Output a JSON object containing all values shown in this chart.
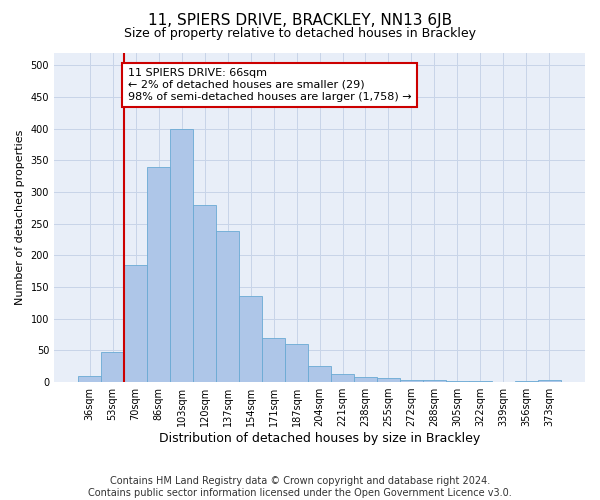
{
  "title": "11, SPIERS DRIVE, BRACKLEY, NN13 6JB",
  "subtitle": "Size of property relative to detached houses in Brackley",
  "xlabel": "Distribution of detached houses by size in Brackley",
  "ylabel": "Number of detached properties",
  "categories": [
    "36sqm",
    "53sqm",
    "70sqm",
    "86sqm",
    "103sqm",
    "120sqm",
    "137sqm",
    "154sqm",
    "171sqm",
    "187sqm",
    "204sqm",
    "221sqm",
    "238sqm",
    "255sqm",
    "272sqm",
    "288sqm",
    "305sqm",
    "322sqm",
    "339sqm",
    "356sqm",
    "373sqm"
  ],
  "bar_values": [
    9,
    47,
    184,
    340,
    400,
    280,
    238,
    136,
    70,
    60,
    26,
    12,
    8,
    6,
    4,
    3,
    1,
    1,
    0,
    1,
    4
  ],
  "bar_color": "#aec6e8",
  "bar_edge_color": "#6aaad4",
  "vline_x_index": 2,
  "vline_color": "#cc0000",
  "annotation_line1": "11 SPIERS DRIVE: 66sqm",
  "annotation_line2": "← 2% of detached houses are smaller (29)",
  "annotation_line3": "98% of semi-detached houses are larger (1,758) →",
  "annotation_box_color": "#cc0000",
  "annotation_box_fill": "#ffffff",
  "ylim": [
    0,
    520
  ],
  "yticks": [
    0,
    50,
    100,
    150,
    200,
    250,
    300,
    350,
    400,
    450,
    500
  ],
  "grid_color": "#c8d4e8",
  "bg_color": "#e8eef8",
  "footer_line1": "Contains HM Land Registry data © Crown copyright and database right 2024.",
  "footer_line2": "Contains public sector information licensed under the Open Government Licence v3.0.",
  "title_fontsize": 11,
  "subtitle_fontsize": 9,
  "xlabel_fontsize": 9,
  "ylabel_fontsize": 8,
  "tick_fontsize": 7,
  "annotation_fontsize": 8,
  "footer_fontsize": 7
}
